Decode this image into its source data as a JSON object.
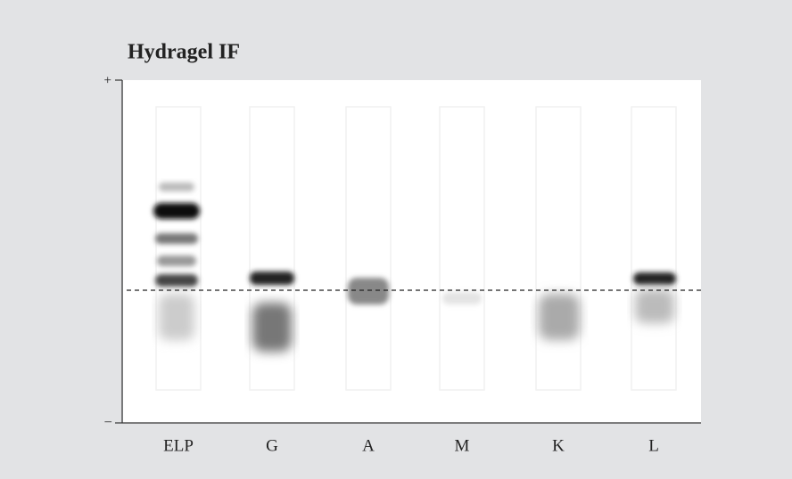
{
  "header": {
    "title": "Hydragel IF"
  },
  "axis": {
    "top": "+",
    "bottom": "–"
  },
  "lanes": [
    "ELP",
    "G",
    "A",
    "M",
    "K",
    "L"
  ]
}
